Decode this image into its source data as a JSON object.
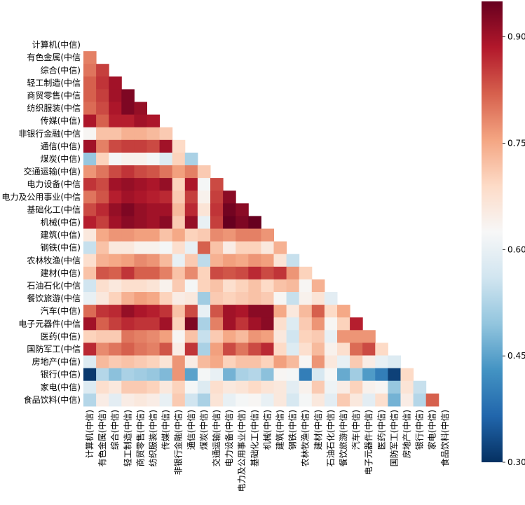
{
  "chart_data": {
    "type": "heatmap",
    "title": "",
    "xlabel": "",
    "ylabel": "",
    "mask": "upper-triangle",
    "x_labels": [
      "计算机(中信)",
      "有色金属(中信)",
      "综合(中信)",
      "轻工制造(中信)",
      "商贸零售(中信)",
      "纺织服装(中信)",
      "传媒(中信)",
      "非银行金融(中信)",
      "通信(中信)",
      "煤炭(中信)",
      "交通运输(中信)",
      "电力设备(中信)",
      "电力及公用事业(中信)",
      "基础化工(中信)",
      "机械(中信)",
      "建筑(中信)",
      "钢铁(中信)",
      "农林牧渔(中信)",
      "建材(中信)",
      "石油石化(中信)",
      "餐饮旅游(中信)",
      "汽车(中信)",
      "电子元器件(中信)",
      "医药(中信)",
      "国防军工(中信)",
      "房地产(中信)",
      "银行(中信)",
      "家电(中信)",
      "食品饮料(中信)"
    ],
    "y_labels": [
      "计算机(中信)",
      "有色金属(中信",
      "综合(中信)",
      "轻工制造(中信",
      "商贸零售(中信",
      "纺织服装(中信",
      "传媒(中信)",
      "非银行金融(中信",
      "通信(中信)",
      "煤炭(中信)",
      "交通运输(中信)",
      "电力设备(中信",
      "电力及公用事业(中信",
      "基础化工(中信",
      "机械(中信)",
      "建筑(中信)",
      "钢铁(中信)",
      "农林牧渔(中信",
      "建材(中信)",
      "石油石化(中信",
      "餐饮旅游(中信",
      "汽车(中信)",
      "电子元器件(中信",
      "医药(中信)",
      "国防军工(中信",
      "房地产(中信)",
      "银行(中信)",
      "家电(中信)",
      "食品饮料(中信)"
    ],
    "values": [
      [],
      [
        0.79
      ],
      [
        0.8,
        0.85
      ],
      [
        0.82,
        0.86,
        0.9
      ],
      [
        0.82,
        0.85,
        0.9,
        0.93
      ],
      [
        0.81,
        0.84,
        0.89,
        0.93,
        0.91
      ],
      [
        0.89,
        0.82,
        0.88,
        0.88,
        0.9,
        0.89
      ],
      [
        0.63,
        0.72,
        0.72,
        0.74,
        0.74,
        0.73,
        0.71
      ],
      [
        0.9,
        0.79,
        0.84,
        0.85,
        0.85,
        0.84,
        0.9,
        0.69
      ],
      [
        0.5,
        0.7,
        0.62,
        0.64,
        0.64,
        0.62,
        0.58,
        0.7,
        0.52
      ],
      [
        0.77,
        0.8,
        0.84,
        0.86,
        0.84,
        0.83,
        0.8,
        0.76,
        0.79,
        0.71
      ],
      [
        0.86,
        0.84,
        0.9,
        0.91,
        0.9,
        0.89,
        0.91,
        0.7,
        0.89,
        0.62,
        0.84
      ],
      [
        0.8,
        0.83,
        0.88,
        0.9,
        0.89,
        0.88,
        0.87,
        0.71,
        0.85,
        0.64,
        0.85,
        0.92
      ],
      [
        0.84,
        0.87,
        0.91,
        0.93,
        0.91,
        0.9,
        0.9,
        0.73,
        0.87,
        0.67,
        0.86,
        0.94,
        0.92
      ],
      [
        0.88,
        0.85,
        0.9,
        0.92,
        0.91,
        0.9,
        0.92,
        0.71,
        0.91,
        0.6,
        0.85,
        0.95,
        0.93,
        0.96
      ],
      [
        0.66,
        0.75,
        0.77,
        0.77,
        0.76,
        0.76,
        0.72,
        0.75,
        0.7,
        0.71,
        0.78,
        0.77,
        0.79,
        0.79,
        0.77
      ],
      [
        0.55,
        0.72,
        0.66,
        0.66,
        0.64,
        0.64,
        0.62,
        0.68,
        0.6,
        0.82,
        0.72,
        0.65,
        0.7,
        0.7,
        0.66,
        0.74
      ],
      [
        0.68,
        0.74,
        0.75,
        0.76,
        0.78,
        0.77,
        0.73,
        0.6,
        0.71,
        0.54,
        0.74,
        0.76,
        0.75,
        0.77,
        0.76,
        0.67,
        0.55
      ],
      [
        0.72,
        0.83,
        0.82,
        0.86,
        0.82,
        0.82,
        0.79,
        0.72,
        0.78,
        0.7,
        0.84,
        0.83,
        0.84,
        0.87,
        0.84,
        0.86,
        0.77,
        0.7
      ],
      [
        0.56,
        0.68,
        0.66,
        0.68,
        0.68,
        0.67,
        0.64,
        0.71,
        0.62,
        0.7,
        0.72,
        0.68,
        0.7,
        0.72,
        0.69,
        0.72,
        0.73,
        0.63,
        0.74
      ],
      [
        0.6,
        0.66,
        0.7,
        0.74,
        0.76,
        0.75,
        0.7,
        0.65,
        0.66,
        0.51,
        0.71,
        0.7,
        0.71,
        0.72,
        0.71,
        0.63,
        0.55,
        0.64,
        0.67,
        0.59
      ],
      [
        0.81,
        0.86,
        0.87,
        0.91,
        0.89,
        0.88,
        0.86,
        0.72,
        0.84,
        0.6,
        0.83,
        0.9,
        0.89,
        0.92,
        0.92,
        0.75,
        0.66,
        0.73,
        0.82,
        0.69,
        0.75
      ],
      [
        0.9,
        0.82,
        0.85,
        0.87,
        0.86,
        0.86,
        0.9,
        0.7,
        0.93,
        0.52,
        0.79,
        0.9,
        0.86,
        0.9,
        0.92,
        0.68,
        0.58,
        0.71,
        0.77,
        0.63,
        0.7,
        0.88
      ],
      [
        0.7,
        0.71,
        0.71,
        0.8,
        0.79,
        0.78,
        0.76,
        0.63,
        0.72,
        0.55,
        0.71,
        0.75,
        0.73,
        0.77,
        0.76,
        0.66,
        0.56,
        0.7,
        0.71,
        0.6,
        0.77,
        0.77,
        0.77
      ],
      [
        0.87,
        0.78,
        0.8,
        0.82,
        0.8,
        0.79,
        0.83,
        0.65,
        0.86,
        0.52,
        0.76,
        0.84,
        0.8,
        0.84,
        0.87,
        0.69,
        0.58,
        0.68,
        0.73,
        0.64,
        0.68,
        0.81,
        0.84,
        0.69
      ],
      [
        0.58,
        0.73,
        0.71,
        0.72,
        0.71,
        0.7,
        0.67,
        0.77,
        0.65,
        0.73,
        0.75,
        0.7,
        0.72,
        0.72,
        0.7,
        0.76,
        0.73,
        0.63,
        0.77,
        0.66,
        0.6,
        0.71,
        0.65,
        0.6,
        0.58
      ],
      [
        0.31,
        0.53,
        0.49,
        0.52,
        0.51,
        0.5,
        0.48,
        0.77,
        0.45,
        0.62,
        0.6,
        0.47,
        0.52,
        0.53,
        0.49,
        0.63,
        0.62,
        0.4,
        0.57,
        0.62,
        0.46,
        0.51,
        0.44,
        0.4,
        0.32,
        0.69
      ],
      [
        0.58,
        0.68,
        0.66,
        0.71,
        0.71,
        0.7,
        0.66,
        0.7,
        0.62,
        0.58,
        0.68,
        0.66,
        0.67,
        0.69,
        0.67,
        0.66,
        0.59,
        0.64,
        0.71,
        0.61,
        0.65,
        0.7,
        0.64,
        0.63,
        0.5,
        0.67,
        0.55
      ],
      [
        0.53,
        0.65,
        0.59,
        0.65,
        0.66,
        0.65,
        0.6,
        0.71,
        0.56,
        0.52,
        0.67,
        0.6,
        0.62,
        0.63,
        0.6,
        0.66,
        0.57,
        0.62,
        0.66,
        0.59,
        0.71,
        0.66,
        0.59,
        0.68,
        0.47,
        0.65,
        0.53,
        0.82
      ]
    ],
    "colorbar": {
      "cmap": "RdBu_r",
      "vmin": 0.3,
      "vmax": 0.95,
      "ticks": [
        0.3,
        0.45,
        0.6,
        0.75,
        0.9
      ],
      "tick_labels": [
        "0.30",
        "0.45",
        "0.60",
        "0.75",
        "0.90"
      ]
    }
  }
}
